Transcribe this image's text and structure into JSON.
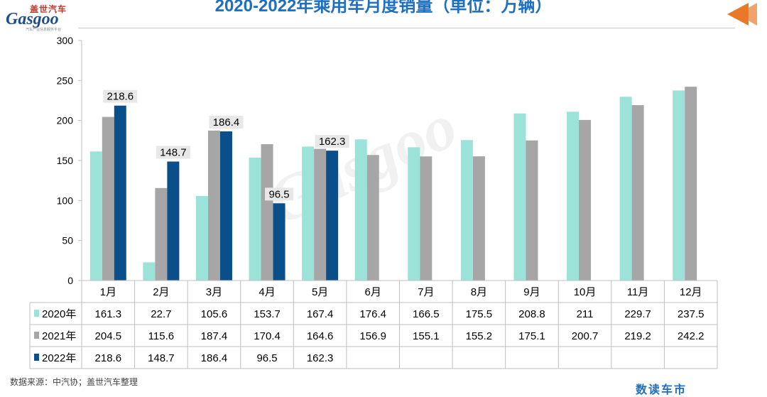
{
  "logo": {
    "cn": "盖世汽车",
    "en": "Gasgoo",
    "tagline": "汽车产业信息服务平台"
  },
  "title": "2020-2022年乘用车月度销量（单位：万辆）",
  "source": "数据来源：中汽协；盖世汽车整理",
  "footer_brand": "数读车市",
  "watermark": "Gasgoo",
  "colors": {
    "2020": "#9be3d8",
    "2021": "#a6a6a6",
    "2022": "#0b4f8a",
    "title": "#1f6fbf",
    "arrow": "#e8792b"
  },
  "chart_data": {
    "type": "bar",
    "title": "2020-2022年乘用车月度销量（单位：万辆）",
    "categories": [
      "1月",
      "2月",
      "3月",
      "4月",
      "5月",
      "6月",
      "7月",
      "8月",
      "9月",
      "10月",
      "11月",
      "12月"
    ],
    "ylim": [
      0,
      300
    ],
    "yticks": [
      0,
      50,
      100,
      150,
      200,
      250,
      300
    ],
    "grid": false,
    "legend": "in data table",
    "series": [
      {
        "name": "2020年",
        "values": [
          161.3,
          22.7,
          105.6,
          153.7,
          167.4,
          176.4,
          166.5,
          175.5,
          208.8,
          211,
          229.7,
          237.5
        ]
      },
      {
        "name": "2021年",
        "values": [
          204.5,
          115.6,
          187.4,
          170.4,
          164.6,
          156.9,
          155.1,
          155.2,
          175.1,
          200.7,
          219.2,
          242.2
        ]
      },
      {
        "name": "2022年",
        "values": [
          218.6,
          148.7,
          186.4,
          96.5,
          162.3,
          null,
          null,
          null,
          null,
          null,
          null,
          null
        ]
      }
    ],
    "data_labels": {
      "series": "2022年",
      "values": [
        "218.6",
        "148.7",
        "186.4",
        "96.5",
        "162.3"
      ]
    }
  }
}
